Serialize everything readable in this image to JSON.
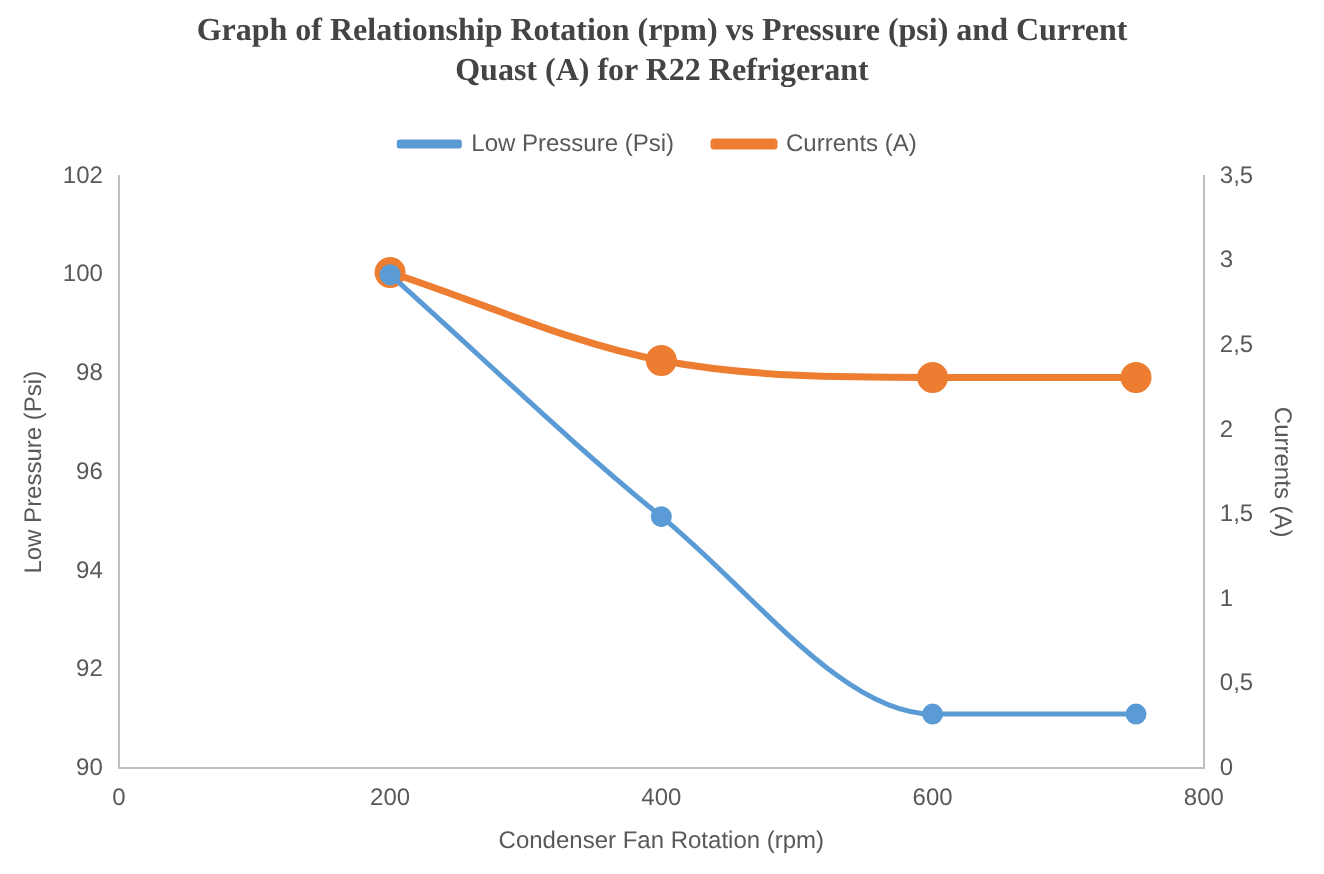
{
  "chart_data": {
    "type": "line",
    "title": "Graph of Relationship Rotation (rpm) vs Pressure (psi) and Current Quast (A) for R22 Refrigerant",
    "xlabel": "Condenser Fan Rotation (rpm)",
    "ylabel": "Low Pressure (Psi)",
    "y2label": "Currents (A)",
    "x": [
      200,
      400,
      600,
      750
    ],
    "series": [
      {
        "name": "Low Pressure (Psi)",
        "color": "#5b9bd5",
        "values": [
          100,
          95.1,
          91.1,
          91.1
        ]
      },
      {
        "name": "Currents (A)",
        "color": "#ed7d31",
        "values": [
          2.93,
          2.41,
          2.31,
          2.31
        ],
        "axis": "y2"
      }
    ],
    "xlim": [
      0,
      800
    ],
    "xticks": [
      0,
      200,
      400,
      600,
      800
    ],
    "ylim": [
      90,
      102
    ],
    "yticks": [
      90,
      92,
      94,
      96,
      98,
      100,
      102
    ],
    "y2lim": [
      0,
      3.5
    ],
    "y2ticks": [
      0,
      {
        "value": 0.5,
        "label": "0,5"
      },
      1,
      {
        "value": 1.5,
        "label": "1,5"
      },
      2,
      {
        "value": 2.5,
        "label": "2,5"
      },
      3,
      {
        "value": 3.5,
        "label": "3,5"
      }
    ],
    "legend": "top",
    "marker": "circle",
    "line_style": "solid",
    "grid": false
  }
}
